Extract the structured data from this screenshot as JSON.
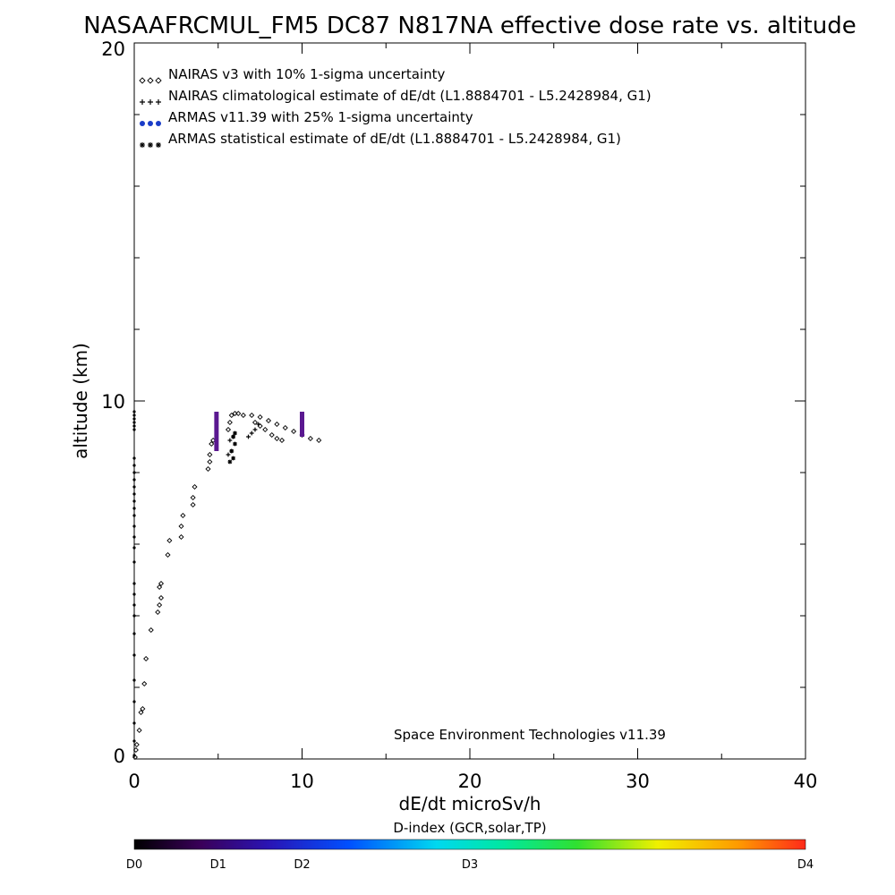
{
  "chart_data": {
    "type": "scatter",
    "title": "NASAAFRCMUL_FM5 DC87 N817NA effective dose rate vs. altitude",
    "xlabel": "dE/dt microSv/h",
    "ylabel": "altitude (km)",
    "xlim": [
      0,
      40
    ],
    "ylim": [
      0,
      20
    ],
    "x_ticks": [
      "0",
      "10",
      "20",
      "30",
      "40"
    ],
    "y_ticks": [
      "0",
      "10",
      "20"
    ],
    "grid": false,
    "legend_position": "top-left",
    "legend": [
      {
        "label": "NAIRAS v3 with 10% 1-sigma uncertainty",
        "marker": "diamond",
        "color": "#000000"
      },
      {
        "label": "NAIRAS climatological estimate of dE/dt (L1.8884701 - L5.2428984, G1)",
        "marker": "plus",
        "color": "#000000"
      },
      {
        "label": "ARMAS v11.39 with 25% 1-sigma uncertainty",
        "marker": "dot",
        "color": "#1a3cc8"
      },
      {
        "label": "ARMAS statistical estimate of dE/dt (L1.8884701 - L5.2428984, G1)",
        "marker": "asterisk",
        "color": "#000000"
      }
    ],
    "annotation": "Space Environment Technologies v11.39",
    "colorbar": {
      "label": "D-index (GCR,solar,TP)",
      "ticks": [
        {
          "label": "D0",
          "value": 0
        },
        {
          "label": "D1",
          "value": 1
        },
        {
          "label": "D2",
          "value": 2
        },
        {
          "label": "D3",
          "value": 3
        },
        {
          "label": "D4",
          "value": 4
        }
      ],
      "tick_positions": [
        0,
        0.125,
        0.25,
        0.5,
        1.0
      ]
    },
    "series": [
      {
        "name": "NAIRAS v3 with 10% 1-sigma uncertainty",
        "marker": "diamond",
        "color": "#000000",
        "points": [
          [
            0.05,
            0.05
          ],
          [
            0.1,
            0.25
          ],
          [
            0.15,
            0.4
          ],
          [
            0.3,
            0.8
          ],
          [
            0.4,
            1.3
          ],
          [
            0.5,
            1.4
          ],
          [
            0.6,
            2.1
          ],
          [
            0.7,
            2.8
          ],
          [
            1.0,
            3.6
          ],
          [
            1.4,
            4.1
          ],
          [
            1.5,
            4.3
          ],
          [
            1.6,
            4.5
          ],
          [
            1.5,
            4.8
          ],
          [
            1.6,
            4.9
          ],
          [
            2.0,
            5.7
          ],
          [
            2.1,
            6.1
          ],
          [
            2.8,
            6.2
          ],
          [
            2.8,
            6.5
          ],
          [
            2.9,
            6.8
          ],
          [
            3.5,
            7.1
          ],
          [
            3.5,
            7.3
          ],
          [
            3.6,
            7.6
          ],
          [
            4.4,
            8.1
          ],
          [
            4.5,
            8.3
          ],
          [
            4.5,
            8.5
          ],
          [
            4.6,
            8.8
          ],
          [
            4.7,
            8.9
          ],
          [
            5.6,
            9.2
          ],
          [
            5.7,
            9.4
          ],
          [
            5.8,
            9.6
          ],
          [
            6.0,
            9.65
          ],
          [
            6.2,
            9.65
          ],
          [
            6.5,
            9.6
          ],
          [
            7.0,
            9.6
          ],
          [
            7.5,
            9.55
          ],
          [
            8.0,
            9.45
          ],
          [
            8.5,
            9.35
          ],
          [
            9.0,
            9.25
          ],
          [
            9.5,
            9.15
          ],
          [
            10.0,
            9.05
          ],
          [
            10.5,
            8.95
          ],
          [
            11.0,
            8.9
          ],
          [
            7.2,
            9.4
          ],
          [
            7.5,
            9.3
          ],
          [
            7.8,
            9.2
          ],
          [
            8.2,
            9.05
          ],
          [
            8.5,
            8.95
          ],
          [
            8.8,
            8.9
          ]
        ]
      },
      {
        "name": "NAIRAS climatological estimate of dE/dt (L1.8884701 - L5.2428984, G1)",
        "marker": "plus",
        "color": "#000000",
        "points": [
          [
            5.6,
            8.5
          ],
          [
            5.8,
            8.6
          ],
          [
            5.7,
            8.9
          ],
          [
            5.9,
            9.0
          ],
          [
            6.8,
            9.0
          ],
          [
            7.0,
            9.1
          ],
          [
            7.2,
            9.2
          ],
          [
            7.4,
            9.35
          ]
        ]
      },
      {
        "name": "ARMAS v11.39 with 25% 1-sigma uncertainty",
        "marker": "dot",
        "color": "#1a3cc8",
        "points": [
          [
            0.0,
            0.1
          ],
          [
            0.0,
            0.5
          ],
          [
            0.0,
            1.0
          ],
          [
            0.0,
            1.6
          ],
          [
            0.0,
            2.2
          ],
          [
            0.0,
            2.9
          ],
          [
            0.0,
            3.5
          ],
          [
            0.0,
            4.0
          ],
          [
            0.0,
            4.3
          ],
          [
            0.0,
            4.6
          ],
          [
            0.0,
            4.9
          ],
          [
            0.0,
            5.5
          ],
          [
            0.0,
            5.9
          ],
          [
            0.0,
            6.2
          ],
          [
            0.0,
            6.5
          ],
          [
            0.0,
            6.8
          ],
          [
            0.0,
            7.0
          ],
          [
            0.0,
            7.2
          ],
          [
            0.0,
            7.4
          ],
          [
            0.0,
            7.6
          ],
          [
            0.0,
            7.8
          ],
          [
            0.0,
            8.0
          ],
          [
            0.0,
            8.2
          ],
          [
            0.0,
            8.4
          ],
          [
            0.0,
            9.2
          ],
          [
            0.0,
            9.3
          ],
          [
            0.0,
            9.4
          ],
          [
            0.0,
            9.5
          ],
          [
            0.0,
            9.6
          ],
          [
            0.0,
            9.7
          ]
        ]
      },
      {
        "name": "ARMAS statistical estimate of dE/dt (L1.8884701 - L5.2428984, G1)",
        "marker": "asterisk",
        "color": "#000000",
        "points": [
          [
            5.7,
            8.3
          ],
          [
            5.9,
            8.4
          ],
          [
            5.8,
            8.6
          ],
          [
            6.0,
            8.8
          ],
          [
            5.9,
            9.0
          ],
          [
            6.0,
            9.1
          ]
        ]
      },
      {
        "name": "uncertainty bars",
        "marker": "bar",
        "color": "#5a1890",
        "points": [
          [
            4.9,
            8.6,
            9.7
          ],
          [
            10.0,
            9.0,
            9.7
          ]
        ]
      }
    ]
  }
}
